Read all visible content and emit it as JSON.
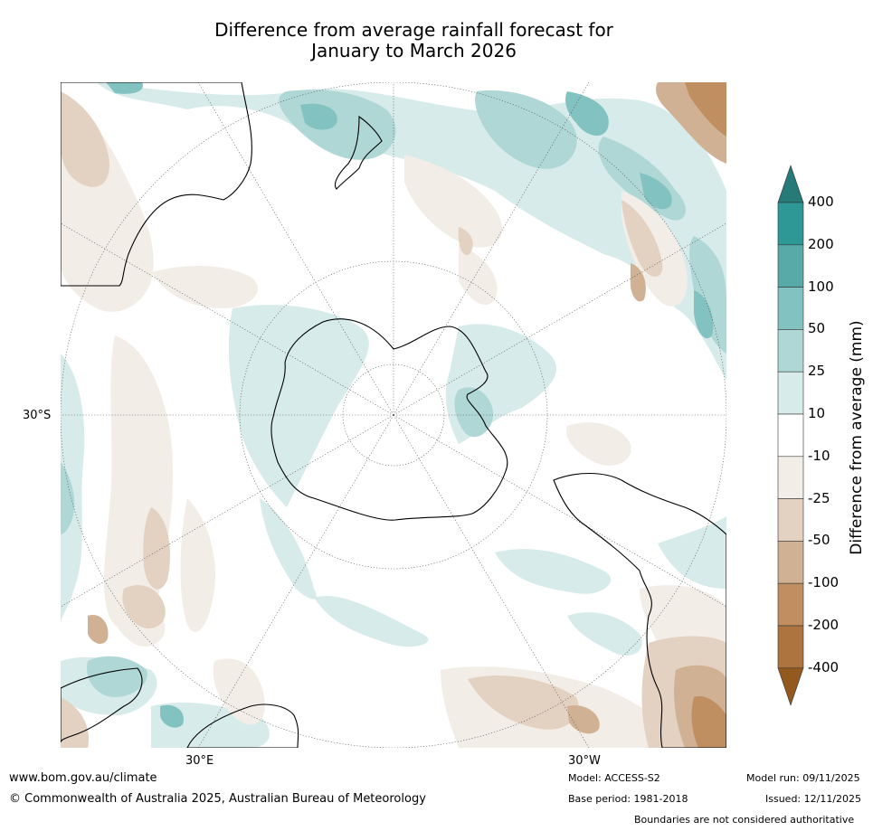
{
  "title": {
    "line1": "Difference from average rainfall forecast for",
    "line2": "January to March 2026"
  },
  "map": {
    "lat_label_left": "30°S",
    "lon_label_bottom_left": "30°E",
    "lon_label_bottom_right": "30°W"
  },
  "colorbar": {
    "title": "Difference from average (mm)",
    "ticks": [
      "400",
      "200",
      "100",
      "50",
      "25",
      "10",
      "-10",
      "-25",
      "-50",
      "-100",
      "-200",
      "-400"
    ],
    "colors": {
      "extend_top": "#267a78",
      "gt200": "#2e9896",
      "100_200": "#58aaa9",
      "50_100": "#82c2c0",
      "25_50": "#aed7d6",
      "10_25": "#d6ebea",
      "neutral": "#ffffff",
      "m10_m25": "#f2ede7",
      "m25_m50": "#e3d1c1",
      "m50_m100": "#d1b193",
      "m100_m200": "#bf8f62",
      "lt_m200": "#ad7440",
      "extend_bottom": "#94591f"
    }
  },
  "footer": {
    "website": "www.bom.gov.au/climate",
    "copyright": "© Commonwealth of Australia 2025, Australian Bureau of Meteorology",
    "model": "Model: ACCESS-S2",
    "base_period": "Base period: 1981-2018",
    "model_run": "Model run: 09/11/2025",
    "issued": "Issued: 12/11/2025",
    "disclaimer": "Boundaries are not considered authoritative"
  }
}
